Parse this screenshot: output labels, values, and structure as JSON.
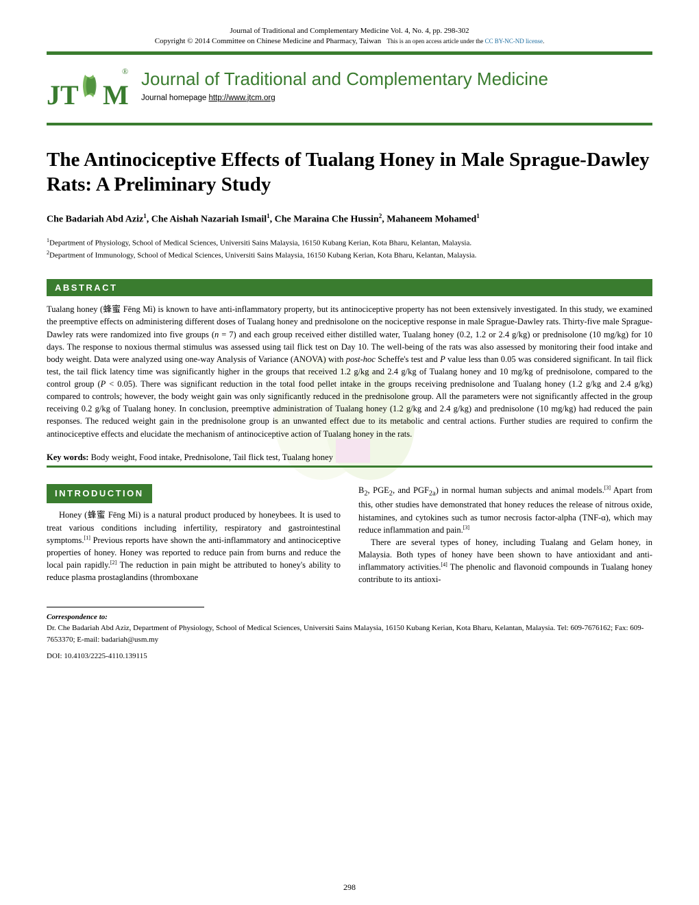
{
  "header": {
    "line1": "Journal of Traditional and Complementary Medicine Vol. 4, No. 4, pp. 298-302",
    "line2_prefix": "Copyright © 2014 Committee on Chinese Medicine and Pharmacy, Taiwan",
    "line2_mid": "This is an open access article under the ",
    "license_text": "CC BY-NC-ND license",
    "line2_suffix": "."
  },
  "banner": {
    "journal_name": "Journal of Traditional and Complementary Medicine",
    "homepage_label": "Journal homepage ",
    "homepage_url": "http://www.jtcm.org",
    "logo_letters": "JT M",
    "logo_reg": "®"
  },
  "title": "The Antinociceptive Effects of Tualang Honey in Male Sprague-Dawley Rats: A Preliminary Study",
  "authors_html": "Che Badariah Abd Aziz<sup>1</sup>, Che Aishah Nazariah Ismail<sup>1</sup>, Che Maraina Che Hussin<sup>2</sup>, Mahaneem Mohamed<sup>1</sup>",
  "affiliations": [
    "<sup>1</sup>Department of Physiology, School of Medical Sciences, Universiti Sains Malaysia, 16150 Kubang Kerian, Kota Bharu, Kelantan, Malaysia.",
    "<sup>2</sup>Department of Immunology, School of Medical Sciences, Universiti Sains Malaysia, 16150 Kubang Kerian, Kota Bharu, Kelantan, Malaysia."
  ],
  "sections": {
    "abstract_label": "ABSTRACT",
    "introduction_label": "INTRODUCTION"
  },
  "abstract": "Tualang honey (蜂蜜 Fēng Mì) is known to have anti-inflammatory property, but its antinociceptive property has not been extensively investigated. In this study, we examined the preemptive effects on administering different doses of Tualang honey and prednisolone on the nociceptive response in male Sprague-Dawley rats. Thirty-five male Sprague-Dawley rats were randomized into five groups (<i>n</i> = 7) and each group received either distilled water, Tualang honey (0.2, 1.2 or 2.4 g/kg) or prednisolone (10 mg/kg) for 10 days. The response to noxious thermal stimulus was assessed using tail flick test on Day 10. The well-being of the rats was also assessed by monitoring their food intake and body weight. Data were analyzed using one-way Analysis of Variance (ANOVA) with <i>post-hoc</i> Scheffe's test and <i>P</i> value less than 0.05 was considered significant. In tail flick test, the tail flick latency time was significantly higher in the groups that received 1.2 g/kg and 2.4 g/kg of Tualang honey and 10 mg/kg of prednisolone, compared to the control group (<i>P</i> < 0.05). There was significant reduction in the total food pellet intake in the groups receiving prednisolone and Tualang honey (1.2 g/kg and 2.4 g/kg) compared to controls; however, the body weight gain was only significantly reduced in the prednisolone group. All the parameters were not significantly affected in the group receiving 0.2 g/kg of Tualang honey. In conclusion, preemptive administration of Tualang honey (1.2 g/kg and 2.4 g/kg) and prednisolone (10 mg/kg) had reduced the pain responses. The reduced weight gain in the prednisolone group is an unwanted effect due to its metabolic and central actions. Further studies are required to confirm the antinociceptive effects and elucidate the mechanism of antinociceptive action of Tualang honey in the rats.",
  "keywords": {
    "label": "Key words:",
    "text": " Body weight, Food intake, Prednisolone, Tail flick test, Tualang honey"
  },
  "intro": {
    "col1_p1": "Honey (蜂蜜 Fēng Mì) is a natural product produced by honeybees. It is used to treat various conditions including infertility, respiratory and gastrointestinal symptoms.<sup>[1]</sup> Previous reports have shown the anti-inflammatory and antinociceptive properties of honey. Honey was reported to reduce pain from burns and reduce the local pain rapidly.<sup>[2]</sup> The reduction in pain might be attributed to honey's ability to reduce plasma prostaglandins (thromboxane",
    "col2_p1": "B<sub>2</sub>, PGE<sub>2</sub>, and PGF<sub>2a</sub>) in normal human subjects and animal models.<sup>[3]</sup> Apart from this, other studies have demonstrated that honey reduces the release of nitrous oxide, histamines, and cytokines such as tumor necrosis factor-alpha (TNF-α), which may reduce inflammation and pain.<sup>[3]</sup>",
    "col2_p2": "There are several types of honey, including Tualang and Gelam honey, in Malaysia. Both types of honey have been shown to have antioxidant and anti-inflammatory activities.<sup>[4]</sup> The phenolic and flavonoid compounds in Tualang honey contribute to its antioxi-"
  },
  "correspondence": {
    "label": "Correspondence to:",
    "text": "Dr. Che Badariah Abd Aziz, Department of Physiology, School of Medical Sciences, Universiti Sains Malaysia, 16150 Kubang Kerian, Kota Bharu, Kelantan, Malaysia. Tel: 609-7676162; Fax: 609-7653370; E-mail: badariah@usm.my"
  },
  "doi": "DOI: 10.4103/2225-4110.139115",
  "page_number": "298",
  "colors": {
    "green": "#3a7c2f",
    "link_blue": "#1a6b9e",
    "text": "#000000",
    "bg": "#ffffff"
  },
  "typography": {
    "title_fontsize": 29,
    "body_fontsize": 12.5,
    "author_fontsize": 14,
    "affil_fontsize": 11,
    "header_meta_fontsize": 11,
    "journal_name_fontsize": 26
  }
}
